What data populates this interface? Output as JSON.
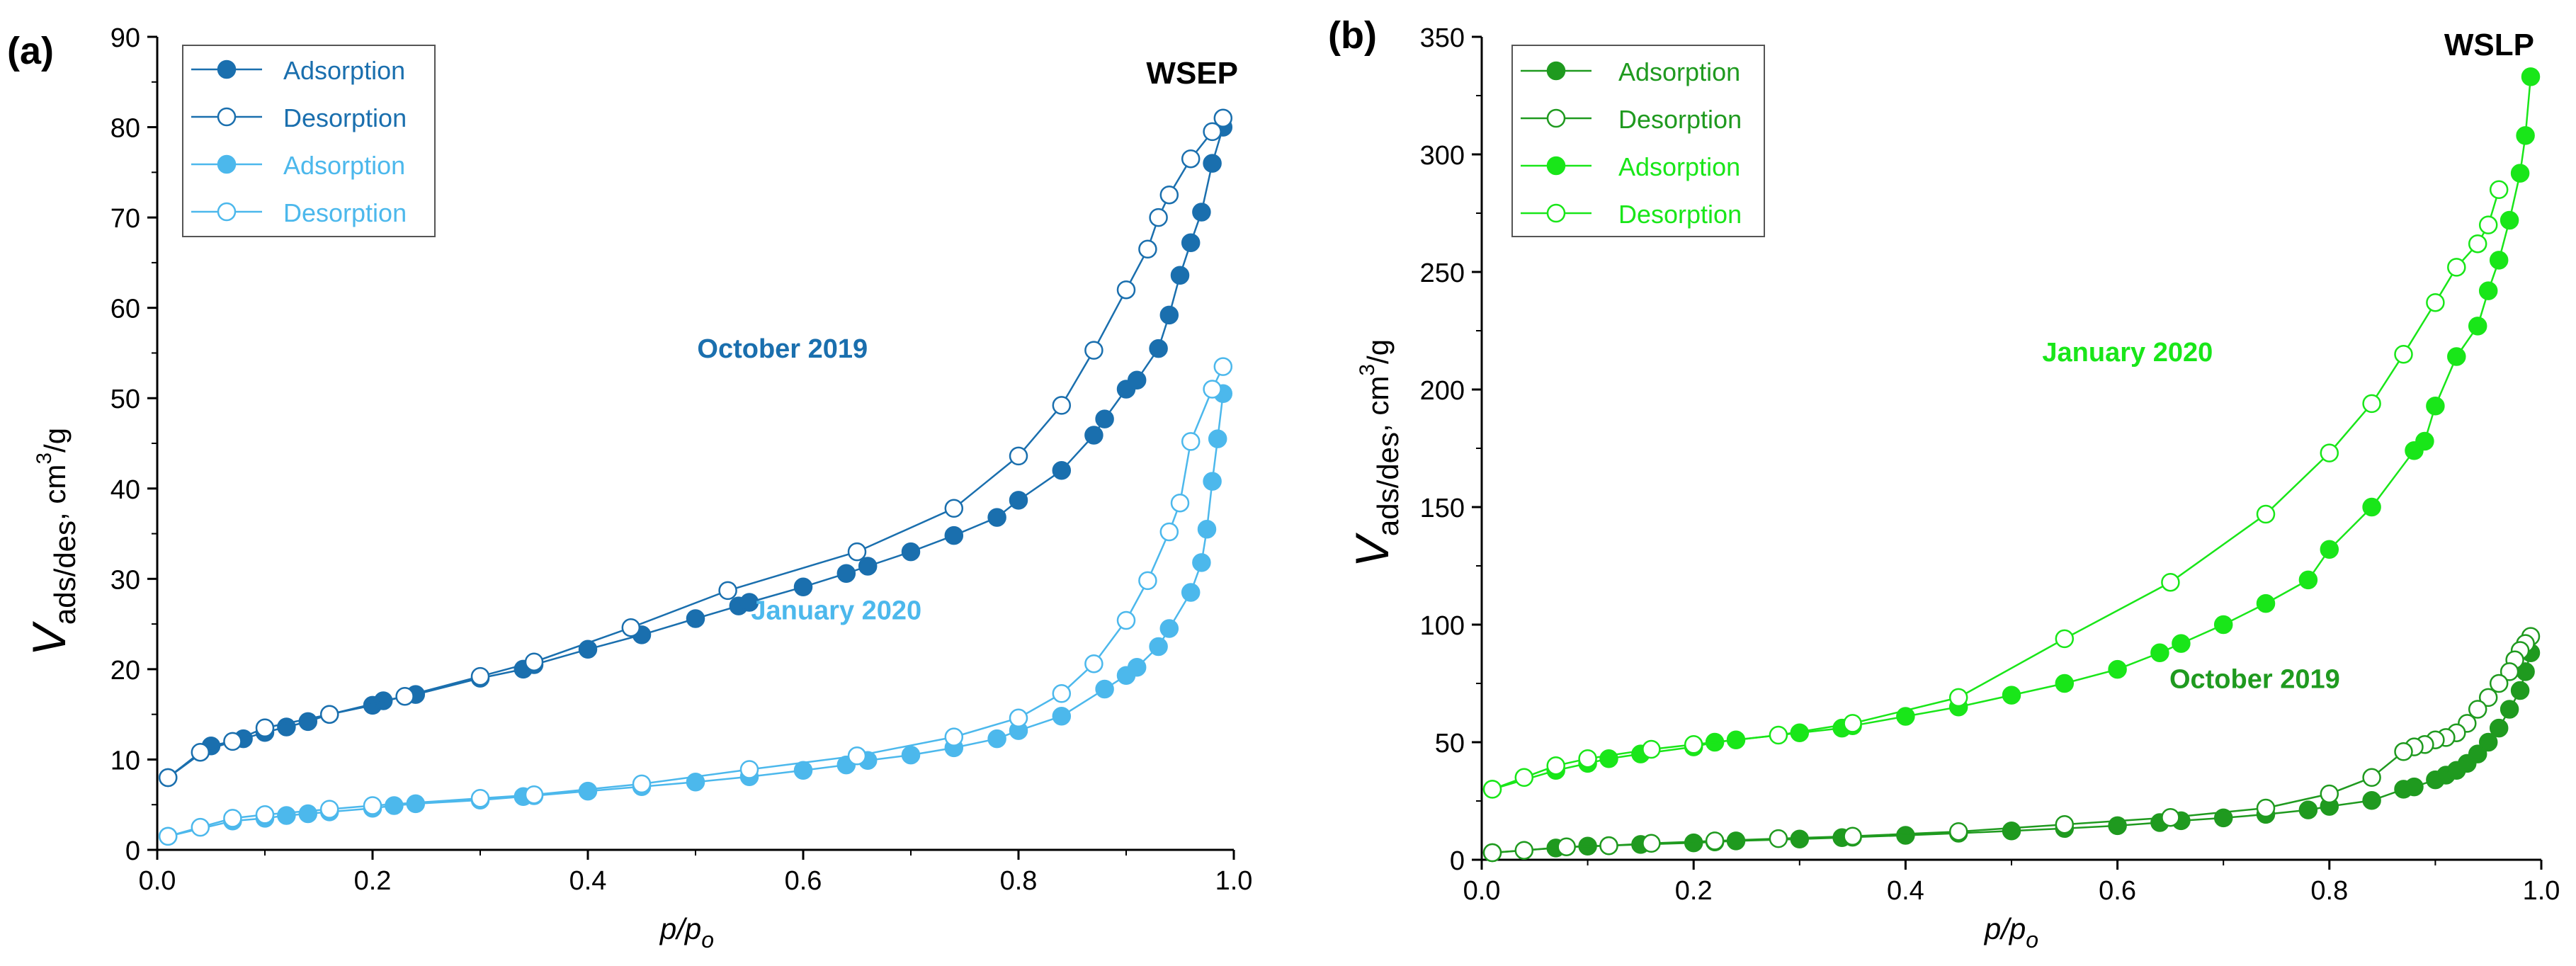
{
  "panels": [
    {
      "panel_label": "(a)",
      "sample": "WSEP",
      "xlabel_main": "p/p",
      "xlabel_sub": "o",
      "ylabel_main": "V",
      "ylabel_sub": "ads/des",
      "ylabel_units_pre": ", cm",
      "ylabel_units_sup": "3",
      "ylabel_units_post": "/g",
      "legend": [
        "Adsorption",
        "Desorption",
        "Adsorption",
        "Desorption"
      ],
      "annotations": [
        "October 2019",
        "January 2020"
      ]
    },
    {
      "panel_label": "(b)",
      "sample": "WSLP",
      "xlabel_main": "p/p",
      "xlabel_sub": "o",
      "ylabel_main": "V",
      "ylabel_sub": "ads/des",
      "ylabel_units_pre": ", cm",
      "ylabel_units_sup": "3",
      "ylabel_units_post": "/g",
      "legend": [
        "Adsorption",
        "Desorption",
        "Adsorption",
        "Desorption"
      ],
      "annotations": [
        "January 2020",
        "October 2019"
      ]
    }
  ],
  "colors": {
    "a_october": "#1a6fae",
    "a_january": "#4cb8ec",
    "b_october": "#1f9a1f",
    "b_january": "#19e619",
    "axis": "#000000"
  },
  "chart_data": [
    {
      "type": "scatter",
      "title": "WSEP",
      "xlabel": "p/po",
      "ylabel": "Vads/des, cm3/g",
      "xlim": [
        0,
        1.0
      ],
      "ylim": [
        0,
        90
      ],
      "xticks": [
        0.0,
        0.2,
        0.4,
        0.6,
        0.8,
        1.0
      ],
      "yticks": [
        0,
        10,
        20,
        30,
        40,
        50,
        60,
        70,
        80,
        90
      ],
      "xtick_labels": [
        "0.0",
        "0.2",
        "0.4",
        "0.6",
        "0.8",
        "1.0"
      ],
      "ytick_labels": [
        "0",
        "10",
        "20",
        "30",
        "40",
        "50",
        "60",
        "70",
        "80",
        "90"
      ],
      "series": [
        {
          "name": "Adsorption (October 2019)",
          "color_key": "a_october",
          "filled": true,
          "x": [
            0.01,
            0.05,
            0.08,
            0.1,
            0.12,
            0.14,
            0.16,
            0.2,
            0.21,
            0.24,
            0.3,
            0.34,
            0.35,
            0.4,
            0.45,
            0.5,
            0.54,
            0.55,
            0.6,
            0.64,
            0.66,
            0.7,
            0.74,
            0.78,
            0.8,
            0.84,
            0.87,
            0.88,
            0.9,
            0.91,
            0.93,
            0.94,
            0.95,
            0.96,
            0.97,
            0.98,
            0.99
          ],
          "y": [
            8,
            11.5,
            12.3,
            13,
            13.6,
            14.2,
            15,
            16,
            16.5,
            17.2,
            19,
            20,
            20.5,
            22.2,
            23.8,
            25.6,
            27,
            27.4,
            29.1,
            30.6,
            31.4,
            33,
            34.8,
            36.8,
            38.7,
            42,
            45.9,
            47.7,
            51,
            52,
            55.5,
            59.2,
            63.6,
            67.2,
            70.6,
            76,
            80
          ]
        },
        {
          "name": "Desorption (October 2019)",
          "color_key": "a_october",
          "filled": false,
          "x": [
            0.99,
            0.98,
            0.96,
            0.94,
            0.93,
            0.92,
            0.9,
            0.87,
            0.84,
            0.8,
            0.74,
            0.65,
            0.53,
            0.44,
            0.35,
            0.3,
            0.23,
            0.16,
            0.1,
            0.07,
            0.04,
            0.01
          ],
          "y": [
            81,
            79.5,
            76.5,
            72.5,
            70,
            66.5,
            62,
            55.3,
            49.2,
            43.6,
            37.8,
            33,
            28.7,
            24.6,
            20.8,
            19.2,
            17,
            15,
            13.5,
            12,
            10.8,
            8
          ]
        },
        {
          "name": "Adsorption (January 2020)",
          "color_key": "a_january",
          "filled": true,
          "x": [
            0.01,
            0.07,
            0.1,
            0.12,
            0.14,
            0.16,
            0.2,
            0.22,
            0.24,
            0.3,
            0.34,
            0.35,
            0.4,
            0.45,
            0.5,
            0.55,
            0.6,
            0.64,
            0.66,
            0.7,
            0.74,
            0.78,
            0.8,
            0.84,
            0.88,
            0.9,
            0.91,
            0.93,
            0.94,
            0.96,
            0.97,
            0.975,
            0.98,
            0.985,
            0.99
          ],
          "y": [
            1.5,
            3.2,
            3.5,
            3.8,
            4,
            4.2,
            4.6,
            4.9,
            5.1,
            5.5,
            5.9,
            6,
            6.5,
            7,
            7.5,
            8.1,
            8.8,
            9.4,
            9.9,
            10.5,
            11.3,
            12.3,
            13.2,
            14.8,
            17.8,
            19.3,
            20.2,
            22.5,
            24.5,
            28.5,
            31.8,
            35.5,
            40.8,
            45.5,
            50.5
          ]
        },
        {
          "name": "Desorption (January 2020)",
          "color_key": "a_january",
          "filled": false,
          "x": [
            0.99,
            0.98,
            0.96,
            0.95,
            0.94,
            0.92,
            0.9,
            0.87,
            0.84,
            0.8,
            0.74,
            0.65,
            0.55,
            0.45,
            0.35,
            0.3,
            0.2,
            0.16,
            0.1,
            0.07,
            0.04,
            0.01
          ],
          "y": [
            53.5,
            51,
            45.2,
            38.4,
            35.2,
            29.8,
            25.4,
            20.6,
            17.3,
            14.6,
            12.5,
            10.4,
            8.9,
            7.3,
            6.1,
            5.7,
            4.9,
            4.5,
            3.9,
            3.5,
            2.5,
            1.5
          ]
        }
      ],
      "annotations": [
        {
          "text": "October 2019",
          "x": 0.66,
          "y": 54.5,
          "color_key": "a_october"
        },
        {
          "text": "January 2020",
          "x": 0.71,
          "y": 25.5,
          "color_key": "a_january"
        }
      ]
    },
    {
      "type": "scatter",
      "title": "WSLP",
      "xlabel": "p/po",
      "ylabel": "Vads/des, cm3/g",
      "xlim": [
        0,
        1.0
      ],
      "ylim": [
        0,
        350
      ],
      "xticks": [
        0.0,
        0.2,
        0.4,
        0.6,
        0.8,
        1.0
      ],
      "yticks": [
        0,
        50,
        100,
        150,
        200,
        250,
        300,
        350
      ],
      "xtick_labels": [
        "0.0",
        "0.2",
        "0.4",
        "0.6",
        "0.8",
        "1.0"
      ],
      "ytick_labels": [
        "0",
        "50",
        "100",
        "150",
        "200",
        "250",
        "300",
        "350"
      ],
      "series": [
        {
          "name": "Adsorption (October 2019)",
          "color_key": "b_october",
          "filled": true,
          "x": [
            0.01,
            0.07,
            0.1,
            0.12,
            0.15,
            0.2,
            0.22,
            0.24,
            0.3,
            0.34,
            0.35,
            0.4,
            0.45,
            0.5,
            0.55,
            0.6,
            0.64,
            0.66,
            0.7,
            0.74,
            0.78,
            0.8,
            0.84,
            0.87,
            0.88,
            0.9,
            0.91,
            0.92,
            0.93,
            0.94,
            0.95,
            0.96,
            0.97,
            0.98,
            0.985,
            0.99
          ],
          "y": [
            3,
            5,
            5.8,
            6,
            6.5,
            7.2,
            7.6,
            8,
            8.8,
            9.4,
            9.6,
            10.4,
            11.3,
            12.3,
            13.3,
            14.5,
            15.8,
            16.6,
            17.8,
            19.3,
            21.2,
            22.7,
            25.2,
            30,
            31,
            34,
            36,
            38,
            41,
            45,
            50,
            56,
            64,
            72,
            80,
            88
          ]
        },
        {
          "name": "Desorption (October 2019)",
          "color_key": "b_october",
          "filled": false,
          "x": [
            0.99,
            0.985,
            0.98,
            0.975,
            0.97,
            0.96,
            0.95,
            0.94,
            0.93,
            0.92,
            0.91,
            0.9,
            0.89,
            0.88,
            0.87,
            0.84,
            0.8,
            0.74,
            0.65,
            0.55,
            0.45,
            0.35,
            0.28,
            0.22,
            0.16,
            0.12,
            0.08,
            0.04,
            0.01
          ],
          "y": [
            95,
            92,
            89,
            85,
            80,
            75,
            69,
            64,
            58,
            54,
            52,
            51,
            49,
            48,
            46,
            35,
            28,
            22,
            18,
            15,
            12,
            10,
            9,
            8,
            7,
            6,
            5.5,
            4,
            3
          ]
        },
        {
          "name": "Adsorption (January 2020)",
          "color_key": "b_january",
          "filled": true,
          "x": [
            0.01,
            0.07,
            0.1,
            0.12,
            0.15,
            0.2,
            0.22,
            0.24,
            0.3,
            0.34,
            0.35,
            0.4,
            0.45,
            0.5,
            0.55,
            0.6,
            0.64,
            0.66,
            0.7,
            0.74,
            0.78,
            0.8,
            0.84,
            0.88,
            0.89,
            0.9,
            0.92,
            0.94,
            0.95,
            0.96,
            0.97,
            0.98,
            0.985,
            0.99
          ],
          "y": [
            30,
            38,
            41,
            43,
            45,
            48,
            50,
            51,
            54,
            56,
            57,
            61,
            65,
            70,
            75,
            81,
            88,
            92,
            100,
            109,
            119,
            132,
            150,
            174,
            178,
            193,
            214,
            227,
            242,
            255,
            272,
            292,
            308,
            333
          ]
        },
        {
          "name": "Desorption (January 2020)",
          "color_key": "b_january",
          "filled": false,
          "x": [
            0.96,
            0.95,
            0.94,
            0.92,
            0.9,
            0.87,
            0.84,
            0.8,
            0.74,
            0.65,
            0.55,
            0.45,
            0.35,
            0.28,
            0.2,
            0.16,
            0.1,
            0.07,
            0.04,
            0.01
          ],
          "y": [
            285,
            270,
            262,
            252,
            237,
            215,
            194,
            173,
            147,
            118,
            94,
            69,
            58,
            53,
            49,
            47,
            43,
            40,
            35,
            30
          ]
        }
      ],
      "annotations": [
        {
          "text": "January 2020",
          "x": 0.69,
          "y": 212,
          "color_key": "b_january"
        },
        {
          "text": "October 2019",
          "x": 0.81,
          "y": 73,
          "color_key": "b_october"
        }
      ]
    }
  ]
}
